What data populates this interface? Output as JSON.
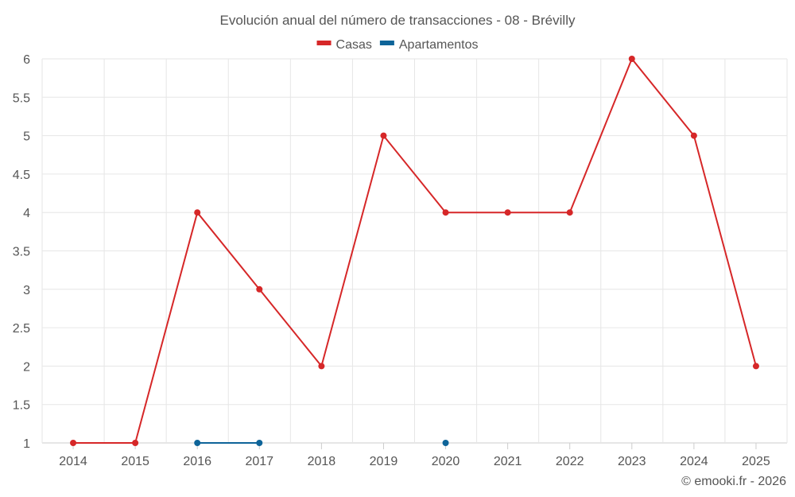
{
  "chart_data": {
    "type": "line",
    "title": "Evolución anual del número de transacciones - 08 - Brévilly",
    "categories": [
      "2014",
      "2015",
      "2016",
      "2017",
      "2018",
      "2019",
      "2020",
      "2021",
      "2022",
      "2023",
      "2024",
      "2025"
    ],
    "y_ticks": [
      "1",
      "1.5",
      "2",
      "2.5",
      "3",
      "3.5",
      "4",
      "4.5",
      "5",
      "5.5",
      "6"
    ],
    "ylim": [
      1,
      6
    ],
    "grid": true,
    "legend_position": "top-center",
    "series": [
      {
        "name": "Casas",
        "color": "#d62728",
        "values": [
          1,
          1,
          4,
          3,
          2,
          5,
          4,
          4,
          4,
          6,
          5,
          2
        ]
      },
      {
        "name": "Apartamentos",
        "color": "#0e6499",
        "values": [
          null,
          null,
          1,
          1,
          null,
          null,
          1,
          null,
          null,
          null,
          null,
          null
        ]
      }
    ],
    "credit": "© emooki.fr - 2026"
  }
}
